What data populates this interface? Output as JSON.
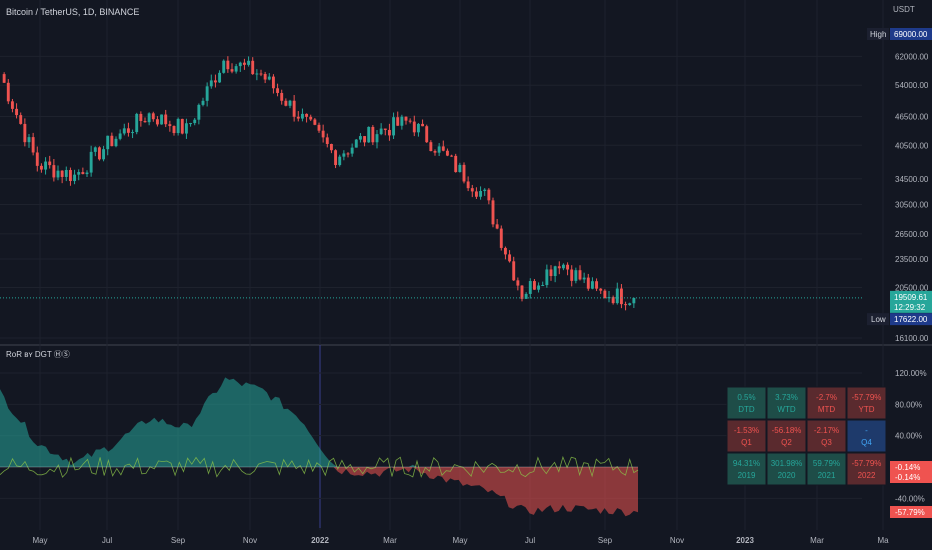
{
  "header": {
    "symbol_title": "Bitcoin / TetherUS, 1D, BINANCE",
    "currency": "USDT",
    "indicator_title": "RoR ʙʏ DGT ⒽⓈ"
  },
  "colors": {
    "background": "#131722",
    "grid": "#1e222d",
    "up": "#26a69a",
    "down": "#ef5350",
    "blue_label": "#1e3a8a",
    "axis_text": "#b2b5be"
  },
  "price_axis": {
    "ticks": [
      "62000.00",
      "54000.00",
      "46500.00",
      "40500.00",
      "34500.00",
      "30500.00",
      "26500.00",
      "23500.00",
      "20500.00",
      "16100.00"
    ],
    "high_label": "High",
    "high_value": "69000.00",
    "low_label": "Low",
    "low_value": "17622.00",
    "last_price": "19509.61",
    "countdown": "12:29:32"
  },
  "indicator_axis": {
    "ticks": [
      "120.00%",
      "80.00%",
      "40.00%",
      "-40.00%"
    ],
    "ticks_zero_area": [
      "-0.14%",
      "-0.14%"
    ],
    "bottom_label": "-57.79%"
  },
  "time_axis": {
    "labels": [
      "May",
      "Jul",
      "Sep",
      "Nov",
      "2022",
      "Mar",
      "May",
      "Jul",
      "Sep",
      "Nov",
      "2023",
      "Mar",
      "Ma"
    ]
  },
  "ror_table": {
    "rows": [
      [
        {
          "value": "0.5%",
          "label": "DTD",
          "dir": "up"
        },
        {
          "value": "3.73%",
          "label": "WTD",
          "dir": "up"
        },
        {
          "value": "-2.7%",
          "label": "MTD",
          "dir": "down"
        },
        {
          "value": "-57.79%",
          "label": "YTD",
          "dir": "down"
        }
      ],
      [
        {
          "value": "-1.53%",
          "label": "Q1",
          "dir": "down"
        },
        {
          "value": "-56.18%",
          "label": "Q2",
          "dir": "down"
        },
        {
          "value": "-2.17%",
          "label": "Q3",
          "dir": "down"
        },
        {
          "value": "-",
          "label": "Q4",
          "dir": "none"
        }
      ],
      [
        {
          "value": "94.31%",
          "label": "2019",
          "dir": "up"
        },
        {
          "value": "301.98%",
          "label": "2020",
          "dir": "up"
        },
        {
          "value": "59.79%",
          "label": "2021",
          "dir": "up"
        },
        {
          "value": "-57.79%",
          "label": "2022",
          "dir": "down"
        }
      ]
    ]
  },
  "chart_data": [
    {
      "type": "candlestick",
      "title": "Bitcoin / TetherUS, 1D, BINANCE",
      "ylabel": "USDT",
      "ylim": [
        16100,
        69000
      ],
      "x": [
        "2021-04",
        "2021-05",
        "2021-06",
        "2021-07",
        "2021-08",
        "2021-09",
        "2021-10",
        "2021-11",
        "2021-12",
        "2022-01",
        "2022-02",
        "2022-03",
        "2022-04",
        "2022-05",
        "2022-06",
        "2022-07",
        "2022-08",
        "2022-09"
      ],
      "close_approx": [
        57000,
        37000,
        35000,
        41500,
        47000,
        43500,
        61000,
        57000,
        47000,
        38500,
        43000,
        45500,
        38000,
        31800,
        19900,
        23300,
        20000,
        19509.61
      ],
      "high": 69000,
      "low": 17622,
      "last": 19509.61
    },
    {
      "type": "area",
      "title": "RoR ʙʏ DGT ⒽⓈ",
      "ylabel": "%",
      "ylim": [
        -57.79,
        140
      ],
      "x": [
        "2021-04",
        "2021-05",
        "2021-06",
        "2021-07",
        "2021-08",
        "2021-09",
        "2021-10",
        "2021-11",
        "2021-12",
        "2022-01",
        "2022-02",
        "2022-03",
        "2022-04",
        "2022-05",
        "2022-06",
        "2022-07",
        "2022-08",
        "2022-09"
      ],
      "series": [
        {
          "values": [
            95,
            30,
            5,
            28,
            62,
            50,
            112,
            98,
            63,
            -4,
            -8,
            -2,
            -18,
            -31,
            -57,
            -52,
            -55,
            -57.79
          ]
        }
      ]
    }
  ]
}
